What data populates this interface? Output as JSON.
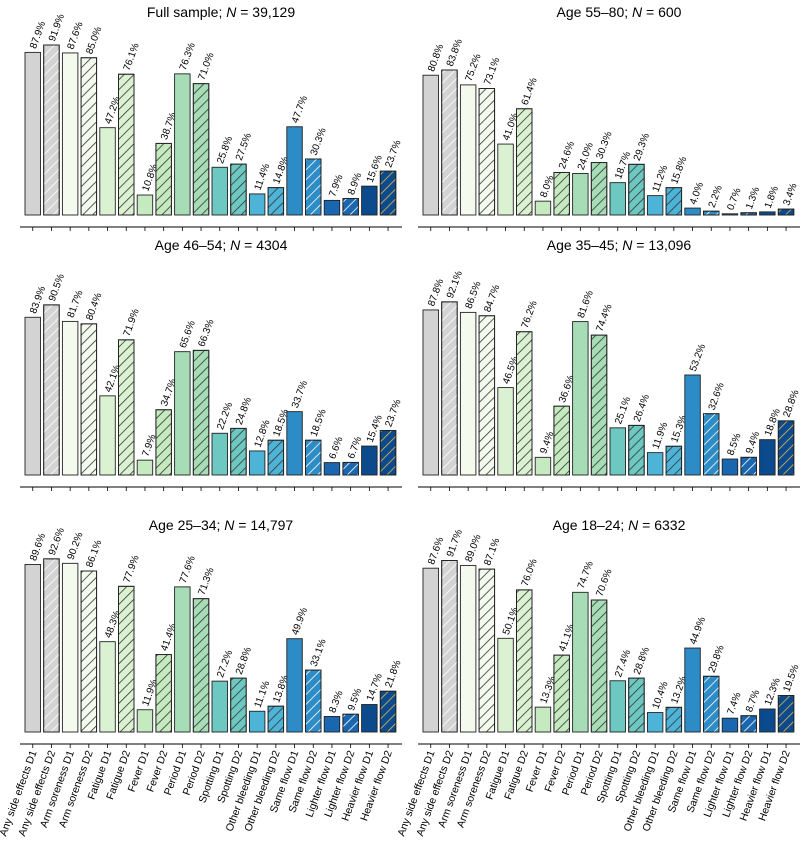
{
  "chart_data": {
    "type": "bar",
    "categories": [
      "Any side effects D1",
      "Any side effects D2",
      "Arm soreness D1",
      "Arm soreness D2",
      "Fatigue D1",
      "Fatigue D2",
      "Fever D1",
      "Fever D2",
      "Period D1",
      "Period D2",
      "Spotting D1",
      "Spotting D2",
      "Other bleeding D1",
      "Other bleeding D2",
      "Same flow D1",
      "Same flow D2",
      "Lighter flow D1",
      "Lighter flow D2",
      "Heavier flow D1",
      "Heavier flow D2"
    ],
    "bar_fills": [
      "#d3d3d3",
      "#d3d3d3",
      "#f4fbee",
      "#f4fbee",
      "#dbf2d2",
      "#dbf2d2",
      "#c6eac0",
      "#c6eac0",
      "#a6dcb6",
      "#a6dcb6",
      "#6cc8c0",
      "#6cc8c0",
      "#4db3d7",
      "#4db3d7",
      "#2d8bc5",
      "#2d8bc5",
      "#1a67b0",
      "#1a67b0",
      "#0c4a8e",
      "#0c4a8e"
    ],
    "hatch_line_colors": [
      "#555555",
      "#ffffff",
      "#ffffff",
      "#333333",
      "#ffffff",
      "#333333",
      "#ffffff",
      "#333333",
      "#ffffff",
      "#333333",
      "#ffffff",
      "#333333",
      "#ffffff",
      "#333333",
      "#ffffff",
      "#ffffff",
      "#ffffff",
      "#ffffff",
      "#ffffff",
      "#e6b84a"
    ],
    "ylim": [
      0,
      100
    ],
    "panels": [
      {
        "title_prefix": "Full sample; ",
        "n_symbol": "N",
        "n_value": " = 39,129",
        "values": [
          87.9,
          91.9,
          87.6,
          85.0,
          47.2,
          76.1,
          10.8,
          38.7,
          76.3,
          71.0,
          25.8,
          27.5,
          11.4,
          14.8,
          47.7,
          30.3,
          7.9,
          8.9,
          15.6,
          23.7
        ],
        "labels": [
          "87.9%",
          "91.9%",
          "87.6%",
          "85.0%",
          "47.2%",
          "76.1%",
          "10.8%",
          "38.7%",
          "76.3%",
          "71.0%",
          "25.8%",
          "27.5%",
          "11.4%",
          "14.8%",
          "47.7%",
          "30.3%",
          "7.9%",
          "8.9%",
          "15.6%",
          "23.7%"
        ]
      },
      {
        "title_prefix": "Age 55–80; ",
        "n_symbol": "N",
        "n_value": " = 600",
        "values": [
          80.8,
          83.8,
          75.2,
          73.1,
          41.0,
          61.4,
          8.0,
          24.6,
          24.0,
          30.3,
          18.7,
          29.3,
          11.2,
          15.8,
          4.0,
          2.2,
          0.7,
          1.3,
          1.8,
          3.4
        ],
        "labels": [
          "80.8%",
          "83.8%",
          "75.2%",
          "73.1%",
          "41.0%",
          "61.4%",
          "8.0%",
          "24.6%",
          "24.0%",
          "30.3%",
          "18.7%",
          "29.3%",
          "11.2%",
          "15.8%",
          "4.0%",
          "2.2%",
          "0.7%",
          "1.3%",
          "1.8%",
          "3.4%"
        ]
      },
      {
        "title_prefix": "Age 46–54; ",
        "n_symbol": "N",
        "n_value": " = 4304",
        "values": [
          83.9,
          90.5,
          81.7,
          80.4,
          42.1,
          71.9,
          7.9,
          34.7,
          65.6,
          66.3,
          22.2,
          24.8,
          12.8,
          18.5,
          33.7,
          18.5,
          6.6,
          6.7,
          15.4,
          23.7
        ],
        "labels": [
          "83.9%",
          "90.5%",
          "81.7%",
          "80.4%",
          "42.1%",
          "71.9%",
          "7.9%",
          "34.7%",
          "65.6%",
          "66.3%",
          "22.2%",
          "24.8%",
          "12.8%",
          "18.5%",
          "33.7%",
          "18.5%",
          "6.6%",
          "6.7%",
          "15.4%",
          "23.7%"
        ]
      },
      {
        "title_prefix": "Age 35–45; ",
        "n_symbol": "N",
        "n_value": " = 13,096",
        "values": [
          87.8,
          92.1,
          86.5,
          84.7,
          46.5,
          76.2,
          9.4,
          36.6,
          81.6,
          74.4,
          25.1,
          26.4,
          11.9,
          15.3,
          53.2,
          32.6,
          8.5,
          9.4,
          18.8,
          28.8
        ],
        "labels": [
          "87.8%",
          "92.1%",
          "86.5%",
          "84.7%",
          "46.5%",
          "76.2%",
          "9.4%",
          "36.6%",
          "81.6%",
          "74.4%",
          "25.1%",
          "26.4%",
          "11.9%",
          "15.3%",
          "53.2%",
          "32.6%",
          "8.5%",
          "9.4%",
          "18.8%",
          "28.8%"
        ]
      },
      {
        "title_prefix": "Age 25–34; ",
        "n_symbol": "N",
        "n_value": " = 14,797",
        "values": [
          89.6,
          92.6,
          90.2,
          86.1,
          48.3,
          77.9,
          11.9,
          41.4,
          77.6,
          71.3,
          27.2,
          28.8,
          11.1,
          13.8,
          49.9,
          33.1,
          8.3,
          9.5,
          14.7,
          21.8
        ],
        "labels": [
          "89.6%",
          "92.6%",
          "90.2%",
          "86.1%",
          "48.3%",
          "77.9%",
          "11.9%",
          "41.4%",
          "77.6%",
          "71.3%",
          "27.2%",
          "28.8%",
          "11.1%",
          "13.8%",
          "49.9%",
          "33.1%",
          "8.3%",
          "9.5%",
          "14.7%",
          "21.8%"
        ]
      },
      {
        "title_prefix": "Age 18–24; ",
        "n_symbol": "N",
        "n_value": " = 6332",
        "values": [
          87.6,
          91.7,
          89.0,
          87.1,
          50.1,
          76.0,
          13.3,
          41.1,
          74.7,
          70.6,
          27.4,
          28.8,
          10.4,
          13.2,
          44.9,
          29.8,
          7.4,
          8.7,
          12.3,
          19.5
        ],
        "labels": [
          "87.6%",
          "91.7%",
          "89.0%",
          "87.1%",
          "50.1%",
          "76.0%",
          "13.3%",
          "41.1%",
          "74.7%",
          "70.6%",
          "27.4%",
          "28.8%",
          "10.4%",
          "13.2%",
          "44.9%",
          "29.8%",
          "7.4%",
          "8.7%",
          "12.3%",
          "19.5%"
        ]
      }
    ]
  }
}
